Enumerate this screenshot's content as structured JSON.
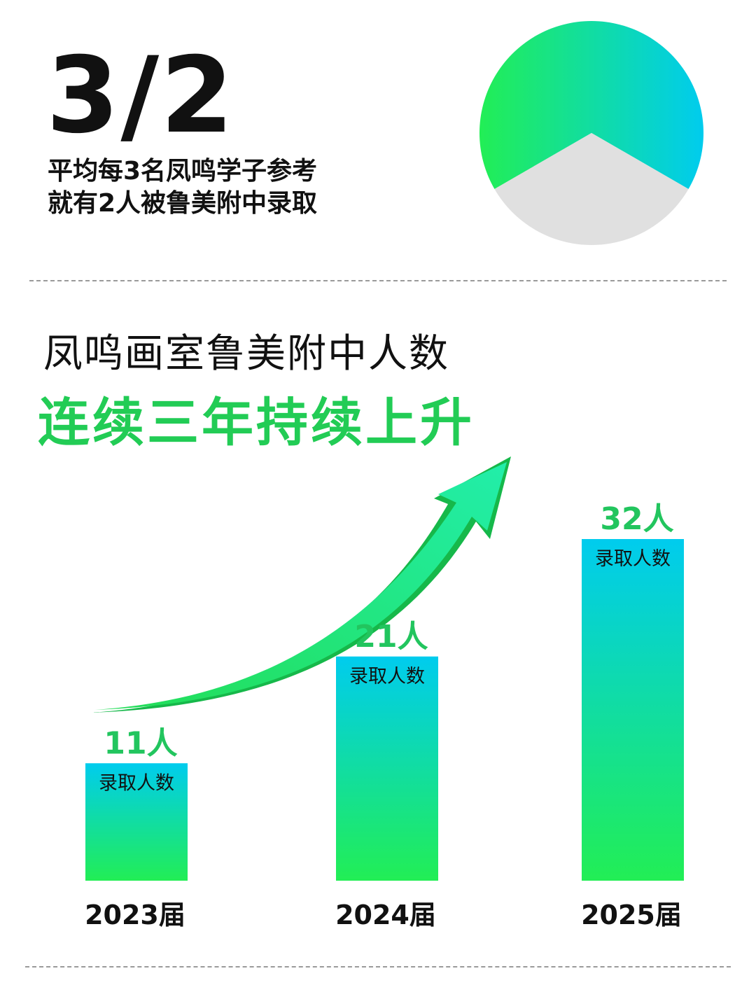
{
  "ratio": {
    "big": "3/2",
    "line1": "平均每3名凤鸣学子参考",
    "line2": "就有2人被鲁美附中录取"
  },
  "headline": {
    "line1": "凤鸣画室鲁美附中人数",
    "line2": "连续三年持续上升"
  },
  "colors": {
    "green": "#22dd55",
    "cyan": "#00ccee",
    "grey": "#e0e0e0",
    "accent_text": "#22cc55"
  },
  "chart_data": [
    {
      "type": "pie",
      "slices": [
        {
          "value": 2
        },
        {
          "value": 1
        }
      ]
    },
    {
      "type": "bar",
      "categories": [
        "2023届",
        "2024届",
        "2025届"
      ],
      "values": [
        11,
        21,
        32
      ],
      "value_labels": [
        "11人",
        "21人",
        "32人"
      ],
      "bar_caption": "录取人数"
    }
  ]
}
